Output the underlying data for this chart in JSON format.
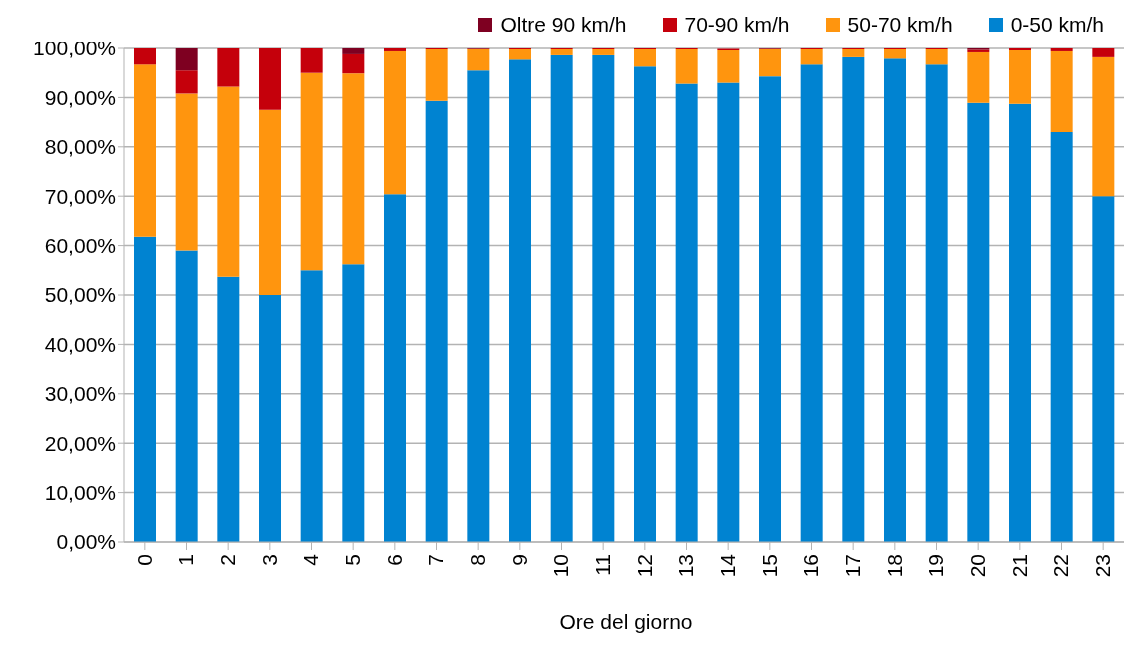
{
  "chart_data": {
    "type": "bar",
    "stacked": true,
    "xlabel": "Ore del giorno",
    "legend": "top",
    "grid": "y",
    "categories": [
      "0",
      "1",
      "2",
      "3",
      "4",
      "5",
      "6",
      "7",
      "8",
      "9",
      "10",
      "11",
      "12",
      "13",
      "14",
      "15",
      "16",
      "17",
      "18",
      "19",
      "20",
      "21",
      "22",
      "23"
    ],
    "ylim": [
      0,
      100
    ],
    "yticks": [
      {
        "value": 0,
        "label": "0,00%"
      },
      {
        "value": 10,
        "label": "10,00%"
      },
      {
        "value": 20,
        "label": "20,00%"
      },
      {
        "value": 30,
        "label": "30,00%"
      },
      {
        "value": 40,
        "label": "40,00%"
      },
      {
        "value": 50,
        "label": "50,00%"
      },
      {
        "value": 60,
        "label": "60,00%"
      },
      {
        "value": 70,
        "label": "70,00%"
      },
      {
        "value": 80,
        "label": "80,00%"
      },
      {
        "value": 90,
        "label": "90,00%"
      },
      {
        "value": 100,
        "label": "100,00%"
      }
    ],
    "series": [
      {
        "name": "0-50 km/h",
        "color": "#0083d1",
        "values": [
          61.8,
          59,
          53.7,
          50,
          55,
          56.2,
          70.4,
          89.3,
          95.5,
          97.7,
          98.6,
          98.6,
          96.3,
          92.8,
          93,
          94.3,
          96.7,
          98.2,
          97.9,
          96.7,
          88.9,
          88.7,
          83,
          70
        ]
      },
      {
        "name": "50-70 km/h",
        "color": "#ff950e",
        "values": [
          34.9,
          31.8,
          38.5,
          37.5,
          40,
          38.7,
          29,
          10.5,
          4.3,
          2.1,
          1.2,
          1.2,
          3.5,
          7,
          6.6,
          5.5,
          3.1,
          1.6,
          1.9,
          3.1,
          10.3,
          10.9,
          16.4,
          28.2
        ]
      },
      {
        "name": "70-90 km/h",
        "color": "#c5000b",
        "values": [
          3.3,
          4.7,
          7.8,
          12.5,
          5,
          3.9,
          0.6,
          0.2,
          0.1,
          0.2,
          0.2,
          0.2,
          0.2,
          0.2,
          0.3,
          0.1,
          0.2,
          0.2,
          0.2,
          0.2,
          0.5,
          0.4,
          0.6,
          1.8
        ]
      },
      {
        "name": "Oltre 90 km/h",
        "color": "#7e0021",
        "values": [
          0,
          4.5,
          0,
          0,
          0,
          1.2,
          0,
          0,
          0.1,
          0,
          0,
          0,
          0,
          0,
          null,
          0.1,
          0,
          0,
          0,
          0,
          0.3,
          0,
          0,
          0
        ]
      }
    ]
  }
}
